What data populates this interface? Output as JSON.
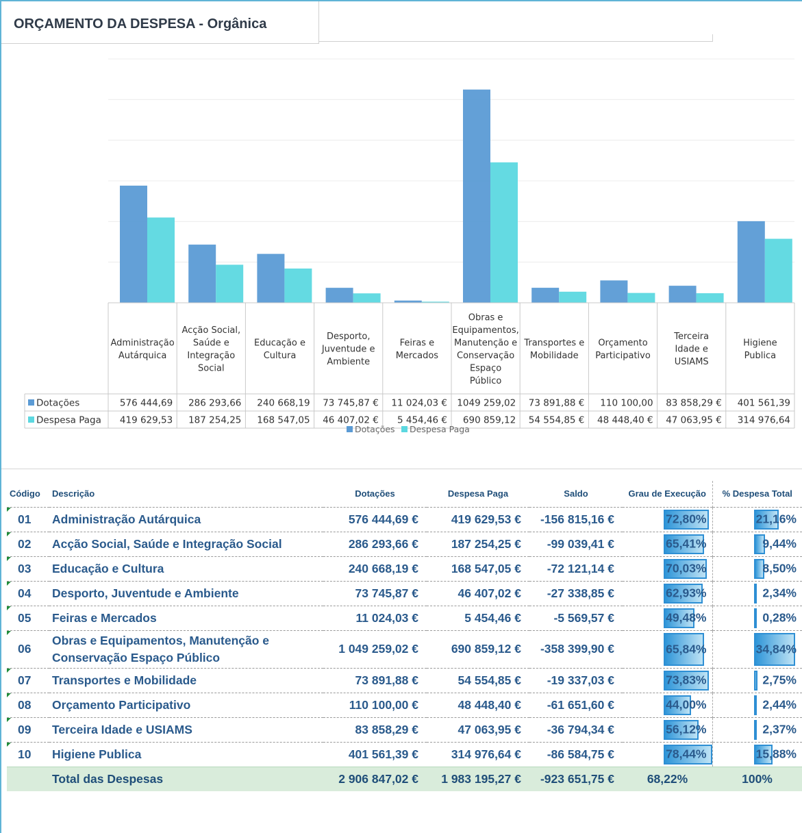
{
  "title": "ORÇAMENTO DA DESPESA - Orgânica",
  "colors": {
    "dotacoes": "#5b9bd5",
    "despesa": "#5cd8e0",
    "total_row": "#d9ecdb",
    "text": "#1f4e79"
  },
  "chart_data": {
    "type": "bar",
    "categories": [
      "Administração Autárquica",
      "Acção Social, Saúde e Integração Social",
      "Educação e Cultura",
      "Desporto, Juventude e Ambiente",
      "Feiras e Mercados",
      "Obras e Equipamentos, Manutenção e Conservação Espaço Público",
      "Transportes e Mobilidade",
      "Orçamento Participativo",
      "Terceira Idade e USIAMS",
      "Higiene Publica"
    ],
    "category_lines": [
      [
        "Administração",
        "Autárquica"
      ],
      [
        "Acção Social,",
        "Saúde e",
        "Integração",
        "Social"
      ],
      [
        "Educação e",
        "Cultura"
      ],
      [
        "Desporto,",
        "Juventude e",
        "Ambiente"
      ],
      [
        "Feiras e",
        "Mercados"
      ],
      [
        "Obras e",
        "Equipamentos,",
        "Manutenção e",
        "Conservação",
        "Espaço",
        "Público"
      ],
      [
        "Transportes e",
        "Mobilidade"
      ],
      [
        "Orçamento",
        "Participativo"
      ],
      [
        "Terceira",
        "Idade e",
        "USIAMS"
      ],
      [
        "Higiene",
        "Publica"
      ]
    ],
    "series": [
      {
        "name": "Dotações",
        "values": [
          576444.69,
          286293.66,
          240668.19,
          73745.87,
          11024.03,
          1049259.02,
          73891.88,
          110100.0,
          83858.29,
          401561.39
        ],
        "labels": [
          "576 444,69",
          "286 293,66",
          "240 668,19",
          "73 745,87 €",
          "11 024,03 €",
          "1049 259,02",
          "73 891,88 €",
          "110 100,00",
          "83 858,29 €",
          "401 561,39"
        ]
      },
      {
        "name": "Despesa Paga",
        "values": [
          419629.53,
          187254.25,
          168547.05,
          46407.02,
          5454.46,
          690859.12,
          54554.85,
          48448.4,
          47063.95,
          314976.64
        ],
        "labels": [
          "419 629,53",
          "187 254,25",
          "168 547,05",
          "46 407,02 €",
          "5 454,46 €",
          "690 859,12",
          "54 554,85 €",
          "48 448,40 €",
          "47 063,95 €",
          "314 976,64"
        ]
      }
    ],
    "ylim": [
      0,
      1200000
    ],
    "grid": true,
    "legend": "bottom"
  },
  "table": {
    "headers": {
      "codigo": "Código",
      "descricao": "Descrição",
      "dotacoes": "Dotações",
      "despesa": "Despesa Paga",
      "saldo": "Saldo",
      "grau": "Grau de Execução",
      "pct": "% Despesa Total"
    },
    "rows": [
      {
        "code": "01",
        "desc": "Administração Autárquica",
        "dot": "576 444,69 €",
        "desp": "419 629,53 €",
        "saldo": "-156 815,16 €",
        "grau": "72,80%",
        "grau_v": 0.728,
        "pct": "21,16%",
        "pct_v": 0.2116
      },
      {
        "code": "02",
        "desc": "Acção Social, Saúde e Integração Social",
        "dot": "286 293,66 €",
        "desp": "187 254,25 €",
        "saldo": "-99 039,41 €",
        "grau": "65,41%",
        "grau_v": 0.6541,
        "pct": "9,44%",
        "pct_v": 0.0944
      },
      {
        "code": "03",
        "desc": "Educação e Cultura",
        "dot": "240 668,19 €",
        "desp": "168 547,05 €",
        "saldo": "-72 121,14 €",
        "grau": "70,03%",
        "grau_v": 0.7003,
        "pct": "8,50%",
        "pct_v": 0.085
      },
      {
        "code": "04",
        "desc": "Desporto, Juventude e Ambiente",
        "dot": "73 745,87 €",
        "desp": "46 407,02 €",
        "saldo": "-27 338,85 €",
        "grau": "62,93%",
        "grau_v": 0.6293,
        "pct": "2,34%",
        "pct_v": 0.0234
      },
      {
        "code": "05",
        "desc": "Feiras e Mercados",
        "dot": "11 024,03 €",
        "desp": "5 454,46 €",
        "saldo": "-5 569,57 €",
        "grau": "49,48%",
        "grau_v": 0.4948,
        "pct": "0,28%",
        "pct_v": 0.0028
      },
      {
        "code": "06",
        "desc": "Obras e Equipamentos, Manutenção e Conservação Espaço Público",
        "dot": "1 049 259,02 €",
        "desp": "690 859,12 €",
        "saldo": "-358 399,90 €",
        "grau": "65,84%",
        "grau_v": 0.6584,
        "pct": "34,84%",
        "pct_v": 0.3484
      },
      {
        "code": "07",
        "desc": "Transportes e Mobilidade",
        "dot": "73 891,88 €",
        "desp": "54 554,85 €",
        "saldo": "-19 337,03 €",
        "grau": "73,83%",
        "grau_v": 0.7383,
        "pct": "2,75%",
        "pct_v": 0.0275
      },
      {
        "code": "08",
        "desc": "Orçamento Participativo",
        "dot": "110 100,00 €",
        "desp": "48 448,40 €",
        "saldo": "-61 651,60 €",
        "grau": "44,00%",
        "grau_v": 0.44,
        "pct": "2,44%",
        "pct_v": 0.0244
      },
      {
        "code": "09",
        "desc": "Terceira Idade e USIAMS",
        "dot": "83 858,29 €",
        "desp": "47 063,95 €",
        "saldo": "-36 794,34 €",
        "grau": "56,12%",
        "grau_v": 0.5612,
        "pct": "2,37%",
        "pct_v": 0.0237
      },
      {
        "code": "10",
        "desc": "Higiene Publica",
        "dot": "401 561,39 €",
        "desp": "314 976,64 €",
        "saldo": "-86 584,75 €",
        "grau": "78,44%",
        "grau_v": 0.7844,
        "pct": "15,88%",
        "pct_v": 0.1588
      }
    ],
    "total": {
      "label": "Total das Despesas",
      "dot": "2 906 847,02 €",
      "desp": "1 983 195,27 €",
      "saldo": "-923 651,75 €",
      "grau": "68,22%",
      "pct": "100%"
    }
  }
}
